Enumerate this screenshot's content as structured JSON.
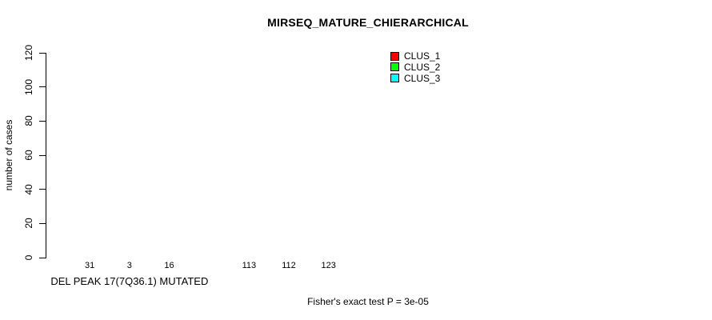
{
  "chart_data": {
    "type": "bar",
    "title": "MIRSEQ_MATURE_CHIERARCHICAL",
    "xlabel": "",
    "ylabel": "number of cases",
    "ylim": [
      0,
      120
    ],
    "y_ticks": [
      0,
      20,
      40,
      60,
      80,
      100,
      120
    ],
    "grid": false,
    "legend_position": "top-right-inside",
    "bar_value_labels": true,
    "categories": [
      "DEL PEAK 17(7Q36.1) MUTATED",
      ""
    ],
    "series": [
      {
        "name": "CLUS_1",
        "color": "#ff0000",
        "values": [
          31,
          113
        ]
      },
      {
        "name": "CLUS_2",
        "color": "#00ff00",
        "values": [
          3,
          112
        ]
      },
      {
        "name": "CLUS_3",
        "color": "#00ffff",
        "values": [
          16,
          123
        ]
      }
    ],
    "annotation": "Fisher's exact test P = 3e-05"
  },
  "colors": {
    "background": "#ffffff",
    "axis": "#000000",
    "text": "#000000"
  }
}
